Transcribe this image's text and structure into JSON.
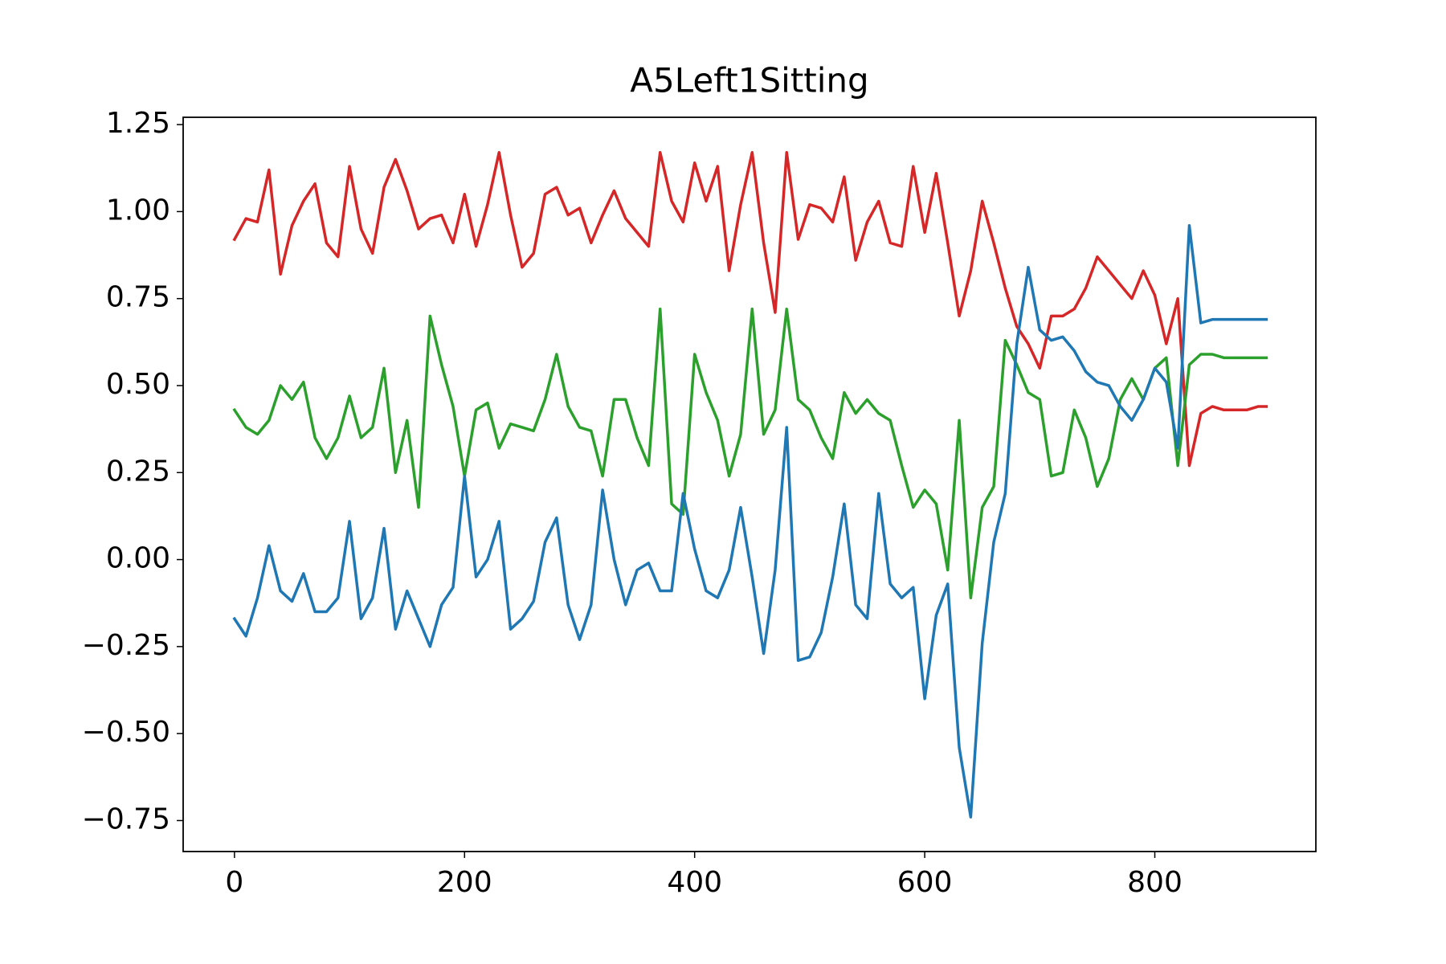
{
  "chart_data": {
    "type": "line",
    "title": "A5Left1Sitting",
    "x": [
      0,
      10,
      20,
      30,
      40,
      50,
      60,
      70,
      80,
      90,
      100,
      110,
      120,
      130,
      140,
      150,
      160,
      170,
      180,
      190,
      200,
      210,
      220,
      230,
      240,
      250,
      260,
      270,
      280,
      290,
      300,
      310,
      320,
      330,
      340,
      350,
      360,
      370,
      380,
      390,
      400,
      410,
      420,
      430,
      440,
      450,
      460,
      470,
      480,
      490,
      500,
      510,
      520,
      530,
      540,
      550,
      560,
      570,
      580,
      590,
      600,
      610,
      620,
      630,
      640,
      650,
      660,
      670,
      680,
      690,
      700,
      710,
      720,
      730,
      740,
      750,
      760,
      770,
      780,
      790,
      800,
      810,
      820,
      830,
      840,
      850,
      860,
      870,
      880,
      890,
      897
    ],
    "series": [
      {
        "color": "#d62728",
        "values": [
          0.92,
          0.98,
          0.97,
          1.12,
          0.82,
          0.96,
          1.03,
          1.08,
          0.91,
          0.87,
          1.13,
          0.95,
          0.88,
          1.07,
          1.15,
          1.06,
          0.95,
          0.98,
          0.99,
          0.91,
          1.05,
          0.9,
          1.02,
          1.17,
          0.99,
          0.84,
          0.88,
          1.05,
          1.07,
          0.99,
          1.01,
          0.91,
          0.99,
          1.06,
          0.98,
          0.94,
          0.9,
          1.17,
          1.03,
          0.97,
          1.14,
          1.03,
          1.13,
          0.83,
          1.02,
          1.17,
          0.91,
          0.71,
          1.17,
          0.92,
          1.02,
          1.01,
          0.97,
          1.1,
          0.86,
          0.97,
          1.03,
          0.91,
          0.9,
          1.13,
          0.94,
          1.11,
          0.91,
          0.7,
          0.83,
          1.03,
          0.91,
          0.78,
          0.67,
          0.62,
          0.55,
          0.7,
          0.7,
          0.72,
          0.78,
          0.87,
          0.83,
          0.79,
          0.75,
          0.83,
          0.76,
          0.62,
          0.75,
          0.27,
          0.42,
          0.44,
          0.43,
          0.43,
          0.43,
          0.44,
          0.44
        ]
      },
      {
        "color": "#2ca02c",
        "values": [
          0.43,
          0.38,
          0.36,
          0.4,
          0.5,
          0.46,
          0.51,
          0.35,
          0.29,
          0.35,
          0.47,
          0.35,
          0.38,
          0.55,
          0.25,
          0.4,
          0.15,
          0.7,
          0.56,
          0.44,
          0.24,
          0.43,
          0.45,
          0.32,
          0.39,
          0.38,
          0.37,
          0.46,
          0.59,
          0.44,
          0.38,
          0.37,
          0.24,
          0.46,
          0.46,
          0.35,
          0.27,
          0.72,
          0.16,
          0.13,
          0.59,
          0.48,
          0.4,
          0.24,
          0.36,
          0.72,
          0.36,
          0.43,
          0.72,
          0.46,
          0.43,
          0.35,
          0.29,
          0.48,
          0.42,
          0.46,
          0.42,
          0.4,
          0.27,
          0.15,
          0.2,
          0.16,
          -0.03,
          0.4,
          -0.11,
          0.15,
          0.21,
          0.63,
          0.56,
          0.48,
          0.46,
          0.24,
          0.25,
          0.43,
          0.35,
          0.21,
          0.29,
          0.46,
          0.52,
          0.46,
          0.55,
          0.58,
          0.27,
          0.56,
          0.59,
          0.59,
          0.58,
          0.58,
          0.58,
          0.58,
          0.58
        ]
      },
      {
        "color": "#1f77b4",
        "values": [
          -0.17,
          -0.22,
          -0.11,
          0.04,
          -0.09,
          -0.12,
          -0.04,
          -0.15,
          -0.15,
          -0.11,
          0.11,
          -0.17,
          -0.11,
          0.09,
          -0.2,
          -0.09,
          -0.17,
          -0.25,
          -0.13,
          -0.08,
          0.24,
          -0.05,
          0.0,
          0.11,
          -0.2,
          -0.17,
          -0.12,
          0.05,
          0.12,
          -0.13,
          -0.23,
          -0.13,
          0.2,
          0.0,
          -0.13,
          -0.03,
          -0.01,
          -0.09,
          -0.09,
          0.19,
          0.03,
          -0.09,
          -0.11,
          -0.03,
          0.15,
          -0.05,
          -0.27,
          -0.03,
          0.38,
          -0.29,
          -0.28,
          -0.21,
          -0.05,
          0.16,
          -0.13,
          -0.17,
          0.19,
          -0.07,
          -0.11,
          -0.08,
          -0.4,
          -0.16,
          -0.07,
          -0.54,
          -0.74,
          -0.24,
          0.05,
          0.19,
          0.62,
          0.84,
          0.66,
          0.63,
          0.64,
          0.6,
          0.54,
          0.51,
          0.5,
          0.44,
          0.4,
          0.46,
          0.55,
          0.51,
          0.32,
          0.96,
          0.68,
          0.69,
          0.69,
          0.69,
          0.69,
          0.69,
          0.69
        ]
      }
    ],
    "xlim": [
      -44.6,
      940
    ],
    "ylim": [
      -0.839,
      1.271
    ],
    "xticks": [
      0,
      200,
      400,
      600,
      800
    ],
    "yticks": [
      {
        "value": -0.75,
        "label": "−0.75"
      },
      {
        "value": -0.5,
        "label": "−0.50"
      },
      {
        "value": -0.25,
        "label": "−0.25"
      },
      {
        "value": 0,
        "label": "0.00"
      },
      0.25,
      {
        "value": 0.5,
        "label": "0.50"
      },
      0.75,
      {
        "value": 1,
        "label": "1.00"
      },
      1.25
    ]
  }
}
